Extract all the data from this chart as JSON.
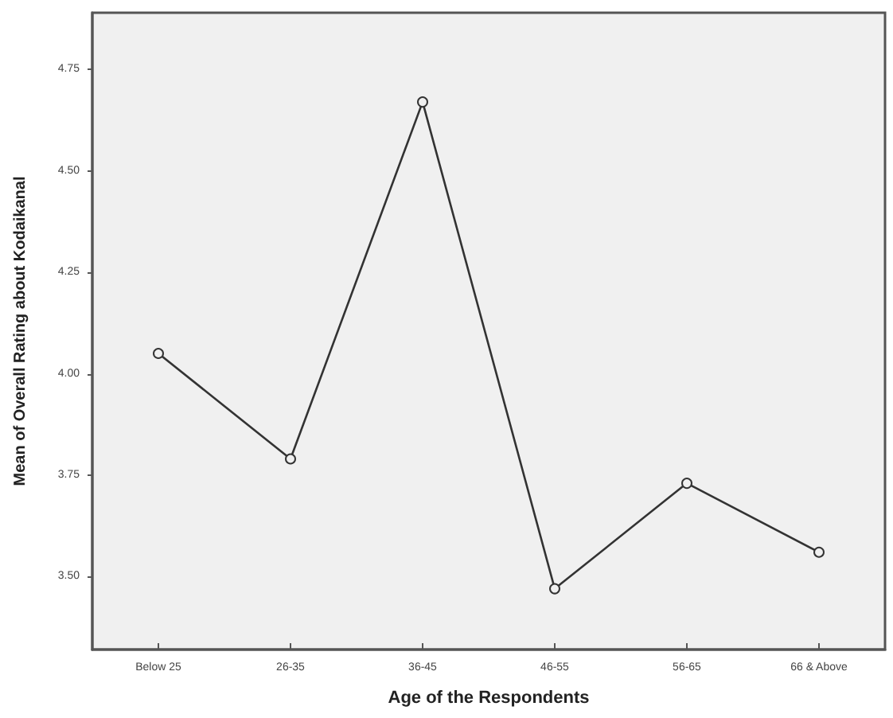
{
  "chart_data": {
    "type": "line",
    "xlabel": "Age of the Respondents",
    "ylabel": "Mean of Overall Rating about Kodaikanal",
    "categories": [
      "Below 25",
      "26-35",
      "36-45",
      "46-55",
      "56-65",
      "66 & Above"
    ],
    "series": [
      {
        "color": "#333333",
        "values": [
          4.05,
          3.79,
          4.67,
          3.47,
          3.73,
          3.56
        ]
      }
    ],
    "ylim": [
      3.32,
      4.89
    ],
    "yticks": [
      {
        "value": 3.5,
        "label": "3.50"
      },
      {
        "value": 3.75,
        "label": "3.75"
      },
      {
        "value": 4,
        "label": "4.00"
      },
      {
        "value": 4.25,
        "label": "4.25"
      },
      {
        "value": 4.5,
        "label": "4.50"
      },
      {
        "value": 4.75,
        "label": "4.75"
      }
    ],
    "grid": false,
    "marker": "circle",
    "line_style": "solid"
  }
}
